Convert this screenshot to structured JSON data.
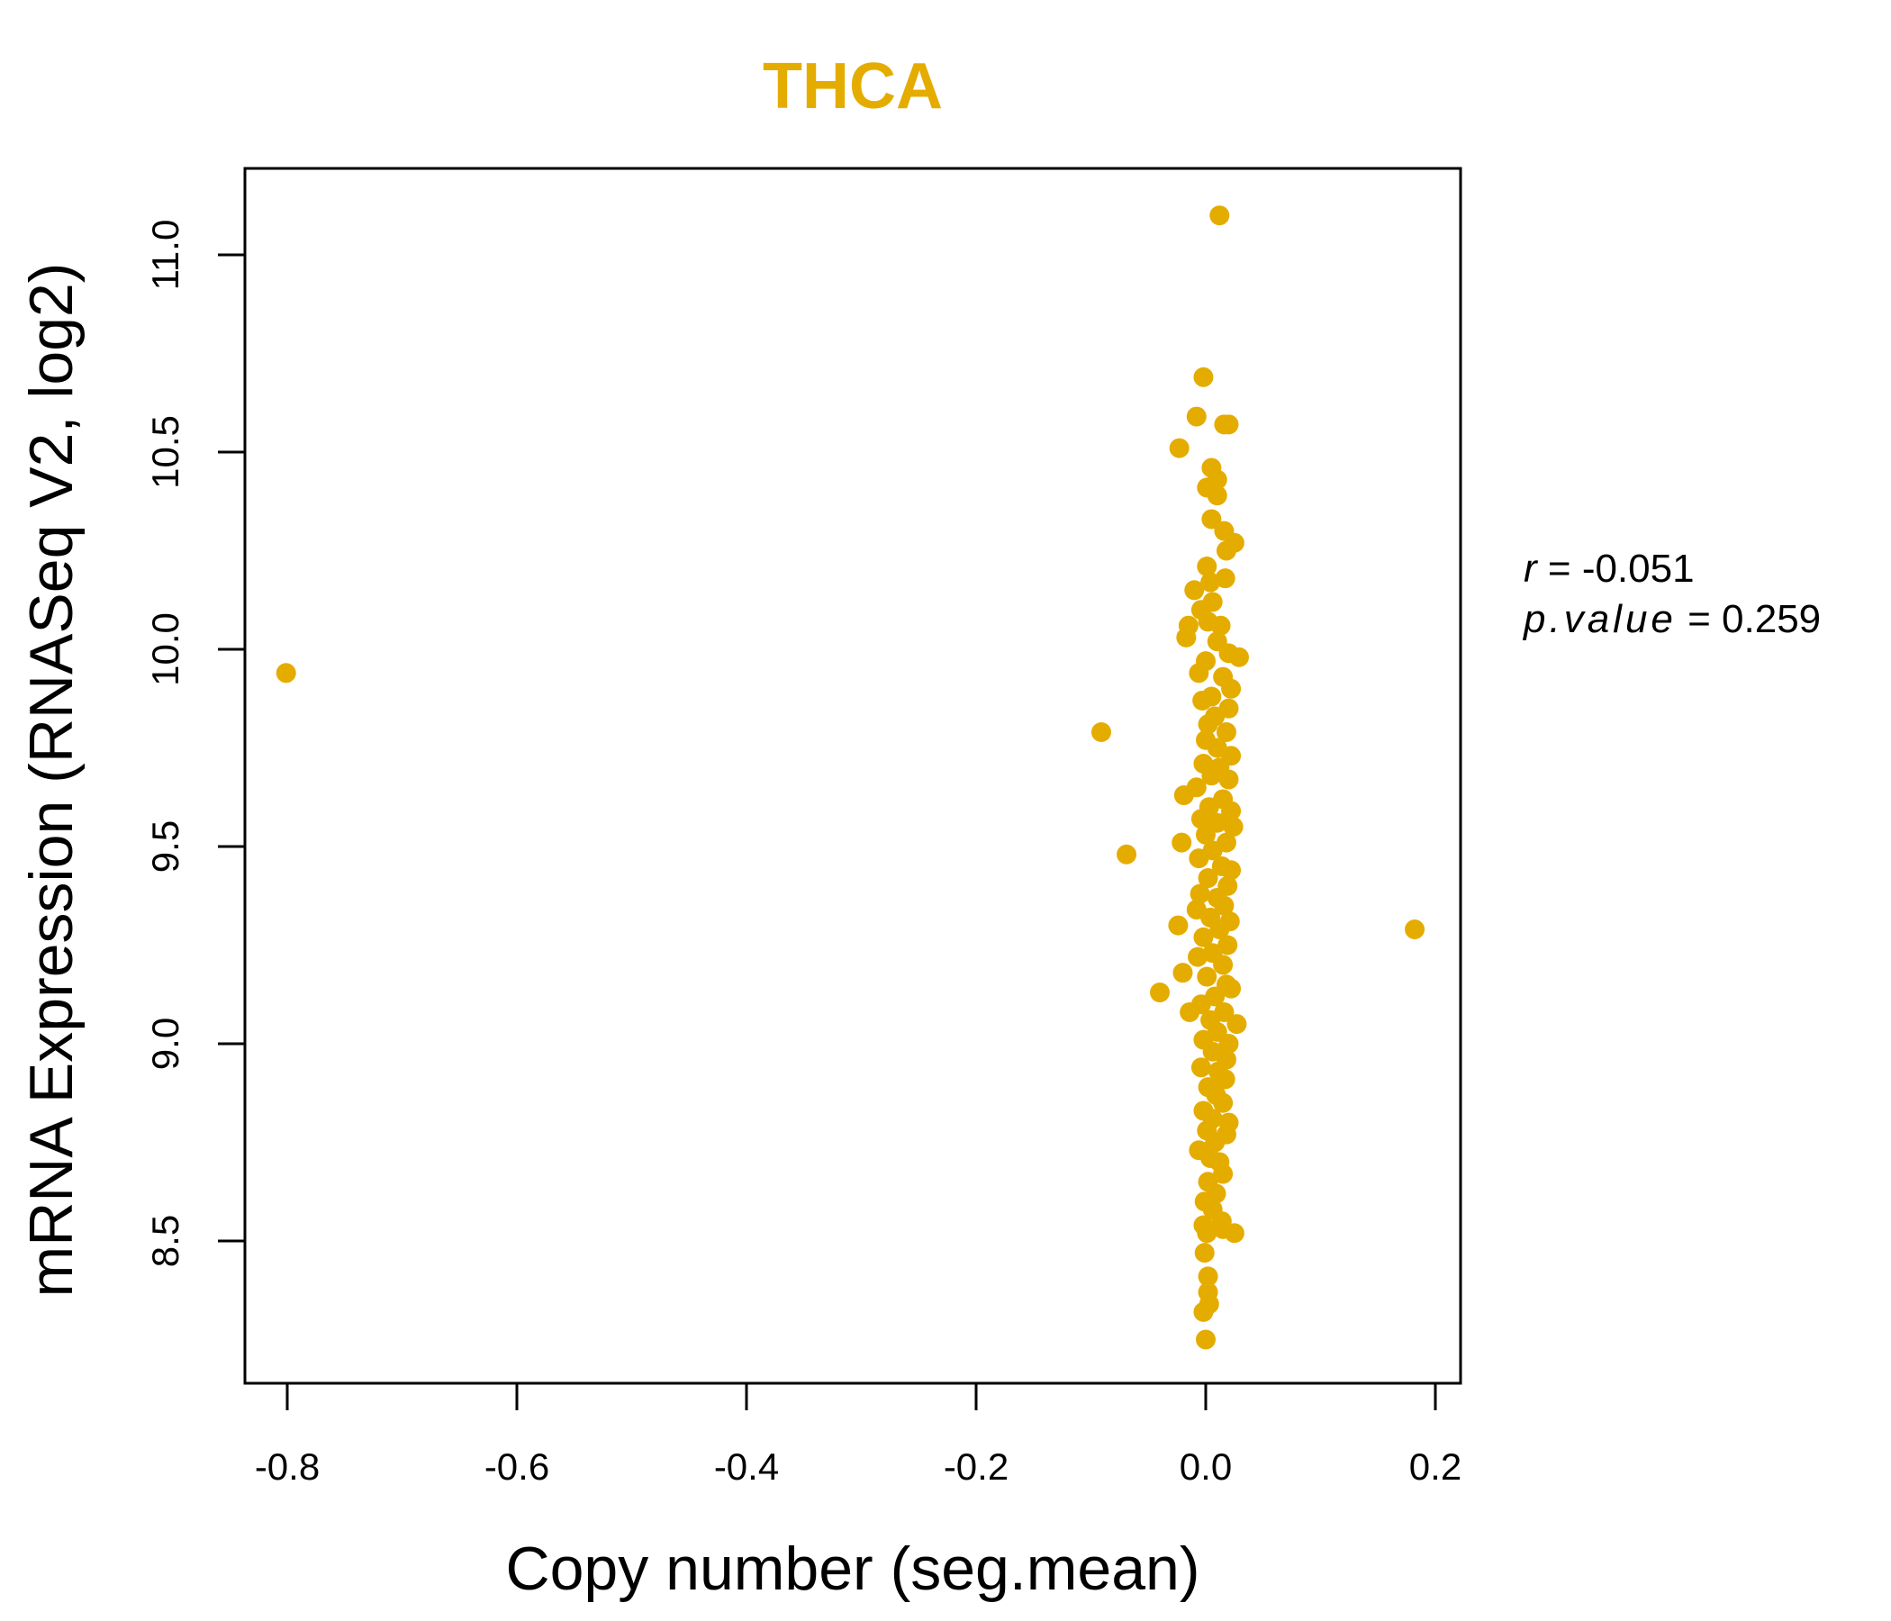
{
  "chart_data": {
    "type": "scatter",
    "title": "THCA",
    "xlabel": "Copy number (seg.mean)",
    "ylabel": "mRNA Expression (RNASeq V2, log2)",
    "xlim": [
      -0.843,
      0.222
    ],
    "ylim": [
      8.18,
      11.22
    ],
    "xticks": [
      -0.8,
      -0.6,
      -0.4,
      -0.2,
      0.0,
      0.2
    ],
    "xtick_labels": [
      "-0.8",
      "-0.6",
      "-0.4",
      "-0.2",
      "0.0",
      "0.2"
    ],
    "yticks": [
      8.5,
      9.0,
      9.5,
      10.0,
      10.5,
      11.0
    ],
    "ytick_labels": [
      "8.5",
      "9.0",
      "9.5",
      "10.0",
      "10.5",
      "11.0"
    ],
    "grid": false,
    "annotation": {
      "r_label": "r",
      "r_value": "-0.051",
      "p_label": "p.value",
      "p_value": "0.259"
    },
    "colors": {
      "points": "#E5AC00",
      "title": "#E5AC00"
    },
    "points": [
      [
        -0.801,
        9.94
      ],
      [
        -0.091,
        9.79
      ],
      [
        -0.069,
        9.48
      ],
      [
        0.182,
        9.29
      ],
      [
        -0.04,
        9.13
      ],
      [
        0.012,
        11.1
      ],
      [
        -0.002,
        10.69
      ],
      [
        -0.008,
        10.59
      ],
      [
        -0.023,
        10.51
      ],
      [
        0.016,
        10.57
      ],
      [
        0.02,
        10.57
      ],
      [
        0.005,
        10.46
      ],
      [
        0.01,
        10.39
      ],
      [
        0.001,
        10.41
      ],
      [
        0.01,
        10.43
      ],
      [
        0.005,
        10.33
      ],
      [
        0.016,
        10.3
      ],
      [
        0.025,
        10.27
      ],
      [
        0.018,
        10.25
      ],
      [
        0.001,
        10.21
      ],
      [
        0.004,
        10.17
      ],
      [
        0.017,
        10.18
      ],
      [
        -0.01,
        10.15
      ],
      [
        0.006,
        10.12
      ],
      [
        -0.004,
        10.1
      ],
      [
        0.002,
        10.07
      ],
      [
        0.013,
        10.06
      ],
      [
        -0.015,
        10.06
      ],
      [
        -0.017,
        10.03
      ],
      [
        0.01,
        10.02
      ],
      [
        0.029,
        9.98
      ],
      [
        0.02,
        9.99
      ],
      [
        0.0,
        9.97
      ],
      [
        -0.006,
        9.94
      ],
      [
        0.015,
        9.93
      ],
      [
        0.022,
        9.9
      ],
      [
        0.005,
        9.88
      ],
      [
        -0.003,
        9.87
      ],
      [
        0.02,
        9.85
      ],
      [
        0.008,
        9.83
      ],
      [
        0.002,
        9.81
      ],
      [
        0.018,
        9.79
      ],
      [
        0.0,
        9.77
      ],
      [
        0.01,
        9.75
      ],
      [
        0.022,
        9.73
      ],
      [
        -0.002,
        9.71
      ],
      [
        0.012,
        9.7
      ],
      [
        0.005,
        9.68
      ],
      [
        0.02,
        9.67
      ],
      [
        -0.008,
        9.65
      ],
      [
        -0.019,
        9.63
      ],
      [
        0.015,
        9.62
      ],
      [
        0.003,
        9.6
      ],
      [
        0.022,
        9.59
      ],
      [
        -0.004,
        9.57
      ],
      [
        0.01,
        9.56
      ],
      [
        0.024,
        9.55
      ],
      [
        0.0,
        9.53
      ],
      [
        -0.021,
        9.51
      ],
      [
        0.018,
        9.51
      ],
      [
        0.006,
        9.49
      ],
      [
        -0.006,
        9.47
      ],
      [
        0.014,
        9.45
      ],
      [
        0.022,
        9.44
      ],
      [
        0.002,
        9.42
      ],
      [
        0.019,
        9.4
      ],
      [
        -0.005,
        9.38
      ],
      [
        0.01,
        9.37
      ],
      [
        0.016,
        9.35
      ],
      [
        -0.008,
        9.34
      ],
      [
        0.004,
        9.32
      ],
      [
        -0.024,
        9.3
      ],
      [
        0.021,
        9.31
      ],
      [
        0.012,
        9.29
      ],
      [
        -0.002,
        9.27
      ],
      [
        0.019,
        9.25
      ],
      [
        0.006,
        9.23
      ],
      [
        -0.007,
        9.22
      ],
      [
        0.015,
        9.2
      ],
      [
        -0.02,
        9.18
      ],
      [
        0.001,
        9.17
      ],
      [
        0.018,
        9.15
      ],
      [
        0.022,
        9.14
      ],
      [
        0.008,
        9.12
      ],
      [
        -0.004,
        9.1
      ],
      [
        -0.014,
        9.08
      ],
      [
        0.016,
        9.08
      ],
      [
        0.004,
        9.06
      ],
      [
        0.027,
        9.05
      ],
      [
        0.01,
        9.03
      ],
      [
        -0.002,
        9.01
      ],
      [
        0.02,
        9.0
      ],
      [
        0.006,
        8.98
      ],
      [
        0.018,
        8.96
      ],
      [
        -0.004,
        8.94
      ],
      [
        0.011,
        8.93
      ],
      [
        0.017,
        8.91
      ],
      [
        0.002,
        8.89
      ],
      [
        0.009,
        8.87
      ],
      [
        0.015,
        8.85
      ],
      [
        -0.002,
        8.83
      ],
      [
        0.006,
        8.81
      ],
      [
        0.02,
        8.8
      ],
      [
        0.001,
        8.78
      ],
      [
        0.018,
        8.77
      ],
      [
        0.008,
        8.75
      ],
      [
        -0.006,
        8.73
      ],
      [
        0.004,
        8.71
      ],
      [
        0.012,
        8.7
      ],
      [
        0.015,
        8.67
      ],
      [
        0.002,
        8.65
      ],
      [
        0.009,
        8.62
      ],
      [
        -0.001,
        8.6
      ],
      [
        0.006,
        8.58
      ],
      [
        0.014,
        8.55
      ],
      [
        0.025,
        8.52
      ],
      [
        -0.002,
        8.54
      ],
      [
        0.015,
        8.53
      ],
      [
        0.001,
        8.52
      ],
      [
        -0.001,
        8.47
      ],
      [
        0.002,
        8.41
      ],
      [
        0.002,
        8.37
      ],
      [
        0.003,
        8.34
      ],
      [
        -0.002,
        8.32
      ],
      [
        0.0,
        8.25
      ]
    ]
  }
}
